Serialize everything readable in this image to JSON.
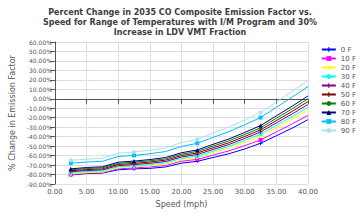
{
  "chart_data": {
    "type": "line",
    "title": "Percent Change in 2035 CO Composite Emission Factor vs.\nSpeed for Range of Temperatures with I/M Program and 30%\nIncrease in LDV VMT Fraction",
    "x_label": "Speed (mph)",
    "y_label": "% Change in Emission Factor",
    "x": [
      2.5,
      5.0,
      7.5,
      10.0,
      12.5,
      15.0,
      17.5,
      20.0,
      22.5,
      25.0,
      27.5,
      30.0,
      32.5,
      35.0,
      37.5,
      40.0
    ],
    "series": [
      {
        "name": "0 F",
        "color": "#0000FF",
        "marker": "plus",
        "values": [
          -0.805,
          -0.79,
          -0.785,
          -0.75,
          -0.74,
          -0.735,
          -0.72,
          -0.68,
          -0.66,
          -0.62,
          -0.58,
          -0.53,
          -0.47,
          -0.39,
          -0.31,
          -0.22
        ]
      },
      {
        "name": "10 F",
        "color": "#FF00FF",
        "marker": "square",
        "values": [
          -0.8,
          -0.785,
          -0.78,
          -0.74,
          -0.73,
          -0.72,
          -0.705,
          -0.66,
          -0.64,
          -0.595,
          -0.55,
          -0.495,
          -0.435,
          -0.35,
          -0.265,
          -0.175
        ]
      },
      {
        "name": "20 F",
        "color": "#FFFF00",
        "marker": "star",
        "values": [
          -0.795,
          -0.78,
          -0.775,
          -0.73,
          -0.72,
          -0.708,
          -0.69,
          -0.645,
          -0.62,
          -0.57,
          -0.52,
          -0.46,
          -0.395,
          -0.305,
          -0.215,
          -0.12
        ]
      },
      {
        "name": "30 F",
        "color": "#00FFFF",
        "marker": "circle",
        "values": [
          -0.78,
          -0.768,
          -0.762,
          -0.718,
          -0.708,
          -0.695,
          -0.676,
          -0.63,
          -0.605,
          -0.553,
          -0.502,
          -0.44,
          -0.372,
          -0.28,
          -0.188,
          -0.09
        ]
      },
      {
        "name": "40 F",
        "color": "#800080",
        "marker": "plus",
        "values": [
          -0.77,
          -0.758,
          -0.751,
          -0.706,
          -0.695,
          -0.681,
          -0.662,
          -0.615,
          -0.588,
          -0.535,
          -0.483,
          -0.419,
          -0.35,
          -0.255,
          -0.16,
          -0.06
        ]
      },
      {
        "name": "50 F",
        "color": "#800000",
        "marker": "plus",
        "values": [
          -0.76,
          -0.748,
          -0.74,
          -0.694,
          -0.683,
          -0.668,
          -0.648,
          -0.6,
          -0.572,
          -0.517,
          -0.464,
          -0.398,
          -0.328,
          -0.23,
          -0.133,
          -0.03
        ]
      },
      {
        "name": "60 F",
        "color": "#008000",
        "marker": "point",
        "values": [
          -0.75,
          -0.737,
          -0.729,
          -0.682,
          -0.67,
          -0.655,
          -0.634,
          -0.585,
          -0.556,
          -0.499,
          -0.444,
          -0.377,
          -0.306,
          -0.205,
          -0.106,
          0.0
        ]
      },
      {
        "name": "70 F",
        "color": "#000080",
        "marker": "triangle",
        "values": [
          -0.74,
          -0.726,
          -0.718,
          -0.67,
          -0.658,
          -0.642,
          -0.62,
          -0.57,
          -0.54,
          -0.481,
          -0.424,
          -0.355,
          -0.283,
          -0.18,
          -0.078,
          0.03
        ]
      },
      {
        "name": "80 F",
        "color": "#00BFFF",
        "marker": "square",
        "values": [
          -0.68,
          -0.668,
          -0.66,
          -0.61,
          -0.598,
          -0.58,
          -0.557,
          -0.503,
          -0.47,
          -0.408,
          -0.347,
          -0.274,
          -0.198,
          -0.09,
          0.018,
          0.13
        ]
      },
      {
        "name": "90 F",
        "color": "#B0E0E6",
        "marker": "circle",
        "values": [
          -0.65,
          -0.638,
          -0.628,
          -0.575,
          -0.562,
          -0.543,
          -0.519,
          -0.462,
          -0.428,
          -0.363,
          -0.299,
          -0.224,
          -0.145,
          -0.033,
          0.08,
          0.195
        ]
      }
    ],
    "xlim": [
      0.0,
      40.0
    ],
    "ylim": [
      -0.9,
      0.6
    ],
    "xticks": [
      {
        "value": 0.0,
        "label": "0.00"
      },
      {
        "value": 5.0,
        "label": "5.00"
      },
      {
        "value": 10.0,
        "label": "10.00"
      },
      {
        "value": 15.0,
        "label": "15.00"
      },
      {
        "value": 20.0,
        "label": "20.00"
      },
      {
        "value": 25.0,
        "label": "25.00"
      },
      {
        "value": 30.0,
        "label": "30.00"
      },
      {
        "value": 35.0,
        "label": "35.00"
      },
      {
        "value": 40.0,
        "label": "40.00"
      }
    ],
    "yticks": [
      {
        "value": -0.9,
        "label": "-90.00%"
      },
      {
        "value": -0.8,
        "label": "-80.00%"
      },
      {
        "value": -0.7,
        "label": "-70.00%"
      },
      {
        "value": -0.6,
        "label": "-60.00%"
      },
      {
        "value": -0.5,
        "label": "-50.00%"
      },
      {
        "value": -0.4,
        "label": "-40.00%"
      },
      {
        "value": -0.3,
        "label": "-30.00%"
      },
      {
        "value": -0.2,
        "label": "-20.00%"
      },
      {
        "value": -0.1,
        "label": "-10.00%"
      },
      {
        "value": 0.0,
        "label": "0.00%"
      },
      {
        "value": 0.1,
        "label": "10.00%"
      },
      {
        "value": 0.2,
        "label": "20.00%"
      },
      {
        "value": 0.3,
        "label": "30.00%"
      },
      {
        "value": 0.4,
        "label": "40.00%"
      },
      {
        "value": 0.5,
        "label": "50.00%"
      },
      {
        "value": 0.6,
        "label": "60.00%"
      }
    ],
    "grid": true,
    "legend": "upper right"
  }
}
